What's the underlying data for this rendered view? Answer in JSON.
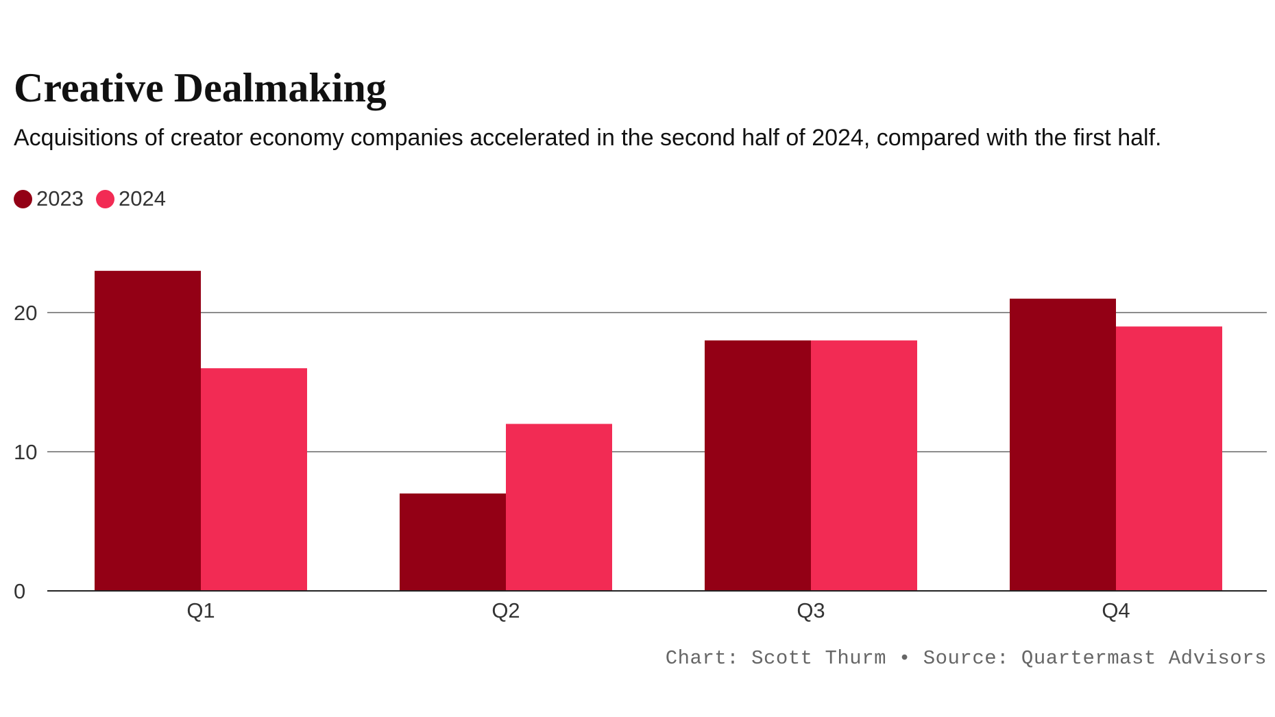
{
  "chart_data": {
    "type": "bar",
    "title": "Creative Dealmaking",
    "subtitle": "Acquisitions of creator economy companies accelerated in the second half of 2024, compared with the first half.",
    "categories": [
      "Q1",
      "Q2",
      "Q3",
      "Q4"
    ],
    "series": [
      {
        "name": "2023",
        "color": "#930015",
        "values": [
          23,
          7,
          18,
          21
        ]
      },
      {
        "name": "2024",
        "color": "#F22B54",
        "values": [
          16,
          12,
          18,
          19
        ]
      }
    ],
    "yticks": [
      0,
      10,
      20
    ],
    "ylim": [
      0,
      23
    ],
    "grid": true,
    "legend": "top-left",
    "xlabel": "",
    "ylabel": ""
  },
  "footer": "Chart: Scott Thurm • Source: Quartermast Advisors"
}
